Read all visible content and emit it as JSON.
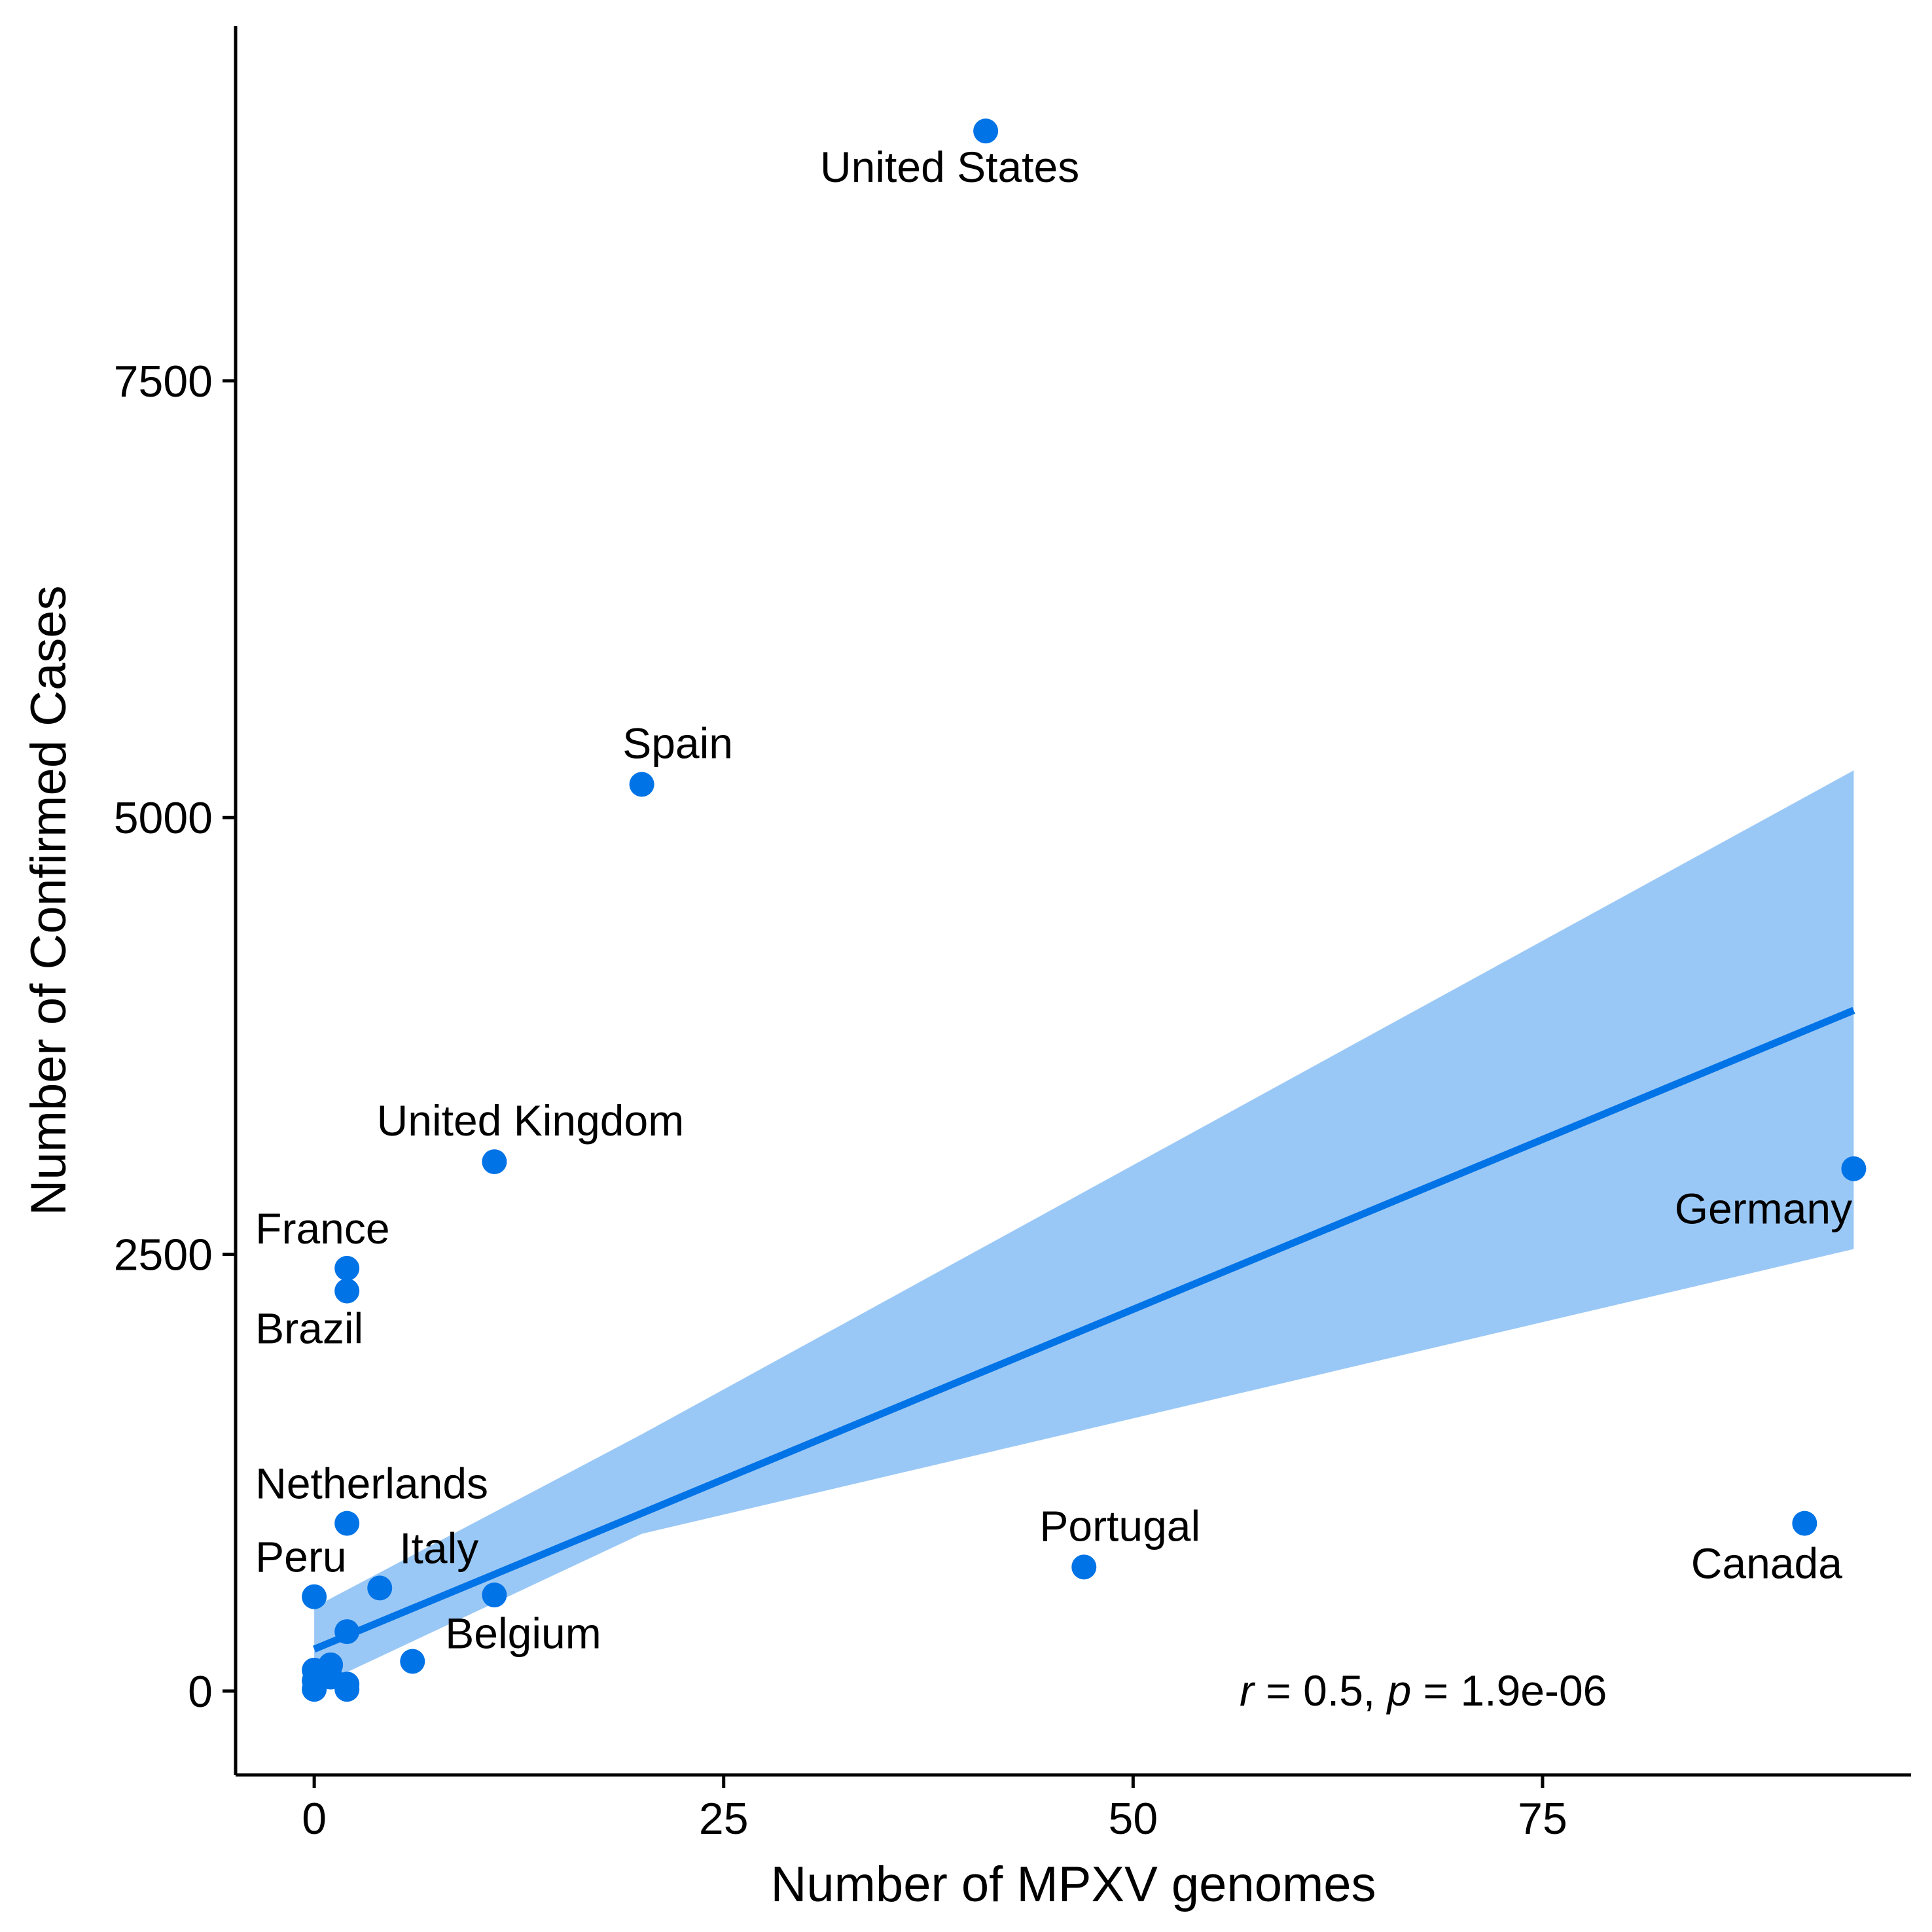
{
  "chart_data": {
    "type": "scatter",
    "title": "",
    "xlabel": "Number of MPXV genomes",
    "ylabel": "Number of Confirmed Cases",
    "xlim": [
      -4.8,
      97.5
    ],
    "ylim": [
      -480,
      9530
    ],
    "xticks": [
      0,
      25,
      50,
      75
    ],
    "yticks": [
      0,
      2500,
      5000,
      7500
    ],
    "grid": false,
    "legend": "none",
    "colors": {
      "points": "#0073e6",
      "fit_line": "#0073e6",
      "confidence_band": "#9ac8f6",
      "axis": "#000000"
    },
    "points": [
      {
        "x": 41,
        "y": 8930,
        "label": "United States"
      },
      {
        "x": 20,
        "y": 5190,
        "label": "Spain"
      },
      {
        "x": 11,
        "y": 3030,
        "label": "United Kingdom"
      },
      {
        "x": 2,
        "y": 2420,
        "label": "France"
      },
      {
        "x": 2,
        "y": 2290,
        "label": "Brazil"
      },
      {
        "x": 94,
        "y": 2990,
        "label": "Germany"
      },
      {
        "x": 2,
        "y": 960,
        "label": "Netherlands"
      },
      {
        "x": 47,
        "y": 710,
        "label": "Portugal"
      },
      {
        "x": 91,
        "y": 960,
        "label": "Canada"
      },
      {
        "x": 0,
        "y": 540,
        "label": "Peru"
      },
      {
        "x": 4,
        "y": 590,
        "label": "Italy"
      },
      {
        "x": 11,
        "y": 550,
        "label": ""
      },
      {
        "x": 6,
        "y": 170,
        "label": "Belgium"
      },
      {
        "x": 2,
        "y": 340,
        "label": ""
      },
      {
        "x": 1,
        "y": 150,
        "label": ""
      },
      {
        "x": 1,
        "y": 80,
        "label": ""
      },
      {
        "x": 0,
        "y": 120,
        "label": ""
      },
      {
        "x": 0,
        "y": 60,
        "label": ""
      },
      {
        "x": 0,
        "y": 10,
        "label": ""
      },
      {
        "x": 2,
        "y": 10,
        "label": ""
      },
      {
        "x": 2,
        "y": 40,
        "label": ""
      }
    ],
    "fit": {
      "type": "linear",
      "x_range": [
        0,
        94
      ],
      "intercept": 240,
      "slope": 38.9,
      "ci_lower": [
        [
          0,
          20
        ],
        [
          20,
          900
        ],
        [
          94,
          2530
        ]
      ],
      "ci_upper": [
        [
          0,
          480
        ],
        [
          20,
          1470
        ],
        [
          94,
          5270
        ]
      ]
    },
    "annotation": {
      "r_symbol": "r",
      "r_text": " = 0.5, ",
      "p_symbol": "p",
      "p_text": " = 1.9e-06",
      "x": 56.5,
      "y": 0
    }
  }
}
